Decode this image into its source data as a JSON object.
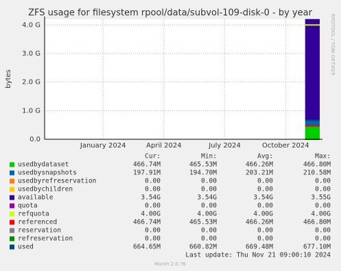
{
  "chart_data": {
    "type": "area",
    "title": "ZFS usage for filesystem rpool/data/subvol-109-disk-0 - by year",
    "y_label": "bytes",
    "side_text": "RRDTOOL / TOBI OETIKER",
    "x": [
      2024.83,
      2024.89
    ],
    "xlim": [
      2023.76,
      2024.89
    ],
    "xticks": [
      {
        "value": 2024,
        "label": "January 2024"
      },
      {
        "value": 2024.25,
        "label": "April 2024"
      },
      {
        "value": 2024.5,
        "label": "July 2024"
      },
      {
        "value": 2024.75,
        "label": "October 2024"
      }
    ],
    "ylim": [
      0,
      4.2
    ],
    "yticks": [
      {
        "value": 0,
        "label": "0.0"
      },
      {
        "value": 1,
        "label": "1.0 G"
      },
      {
        "value": 2,
        "label": "2.0 G"
      },
      {
        "value": 3,
        "label": "3.0 G"
      },
      {
        "value": 4,
        "label": "4.0 G"
      }
    ],
    "grid": true,
    "series": [
      {
        "name": "usedbydataset",
        "color": "#00cc00",
        "style": "area",
        "values": [
          0.46674,
          0.46674
        ]
      },
      {
        "name": "usedbysnapshots",
        "color": "#0066b3",
        "style": "area",
        "values": [
          0.19791,
          0.19791
        ]
      },
      {
        "name": "usedbyrefreservation",
        "color": "#ff8000",
        "style": "area",
        "values": [
          0,
          0
        ]
      },
      {
        "name": "usedbychildren",
        "color": "#ffcc00",
        "style": "area",
        "values": [
          0,
          0
        ]
      },
      {
        "name": "available",
        "color": "#330099",
        "style": "area",
        "values": [
          3.54,
          3.54
        ]
      },
      {
        "name": "quota",
        "color": "#990099",
        "style": "line",
        "values": [
          0,
          0
        ]
      },
      {
        "name": "refquota",
        "color": "#ccff00",
        "style": "line",
        "values": [
          4.0,
          4.0
        ]
      },
      {
        "name": "referenced",
        "color": "#ff0000",
        "style": "line",
        "values": [
          0.46674,
          0.46674
        ]
      },
      {
        "name": "reservation",
        "color": "#808080",
        "style": "line",
        "values": [
          0,
          0
        ]
      },
      {
        "name": "refreservation",
        "color": "#008f00",
        "style": "line",
        "values": [
          0,
          0
        ]
      },
      {
        "name": "used",
        "color": "#00487d",
        "style": "line",
        "values": [
          0.66465,
          0.66465
        ]
      }
    ],
    "stats": {
      "columns": [
        "Cur:",
        "Min:",
        "Avg:",
        "Max:"
      ],
      "rows": [
        [
          "466.74M",
          "465.53M",
          "466.26M",
          "466.80M"
        ],
        [
          "197.91M",
          "194.70M",
          "203.21M",
          "210.58M"
        ],
        [
          "0.00",
          "0.00",
          "0.00",
          "0.00"
        ],
        [
          "0.00",
          "0.00",
          "0.00",
          "0.00"
        ],
        [
          "3.54G",
          "3.54G",
          "3.54G",
          "3.55G"
        ],
        [
          "0.00",
          "0.00",
          "0.00",
          "0.00"
        ],
        [
          "4.00G",
          "4.00G",
          "4.00G",
          "4.00G"
        ],
        [
          "466.74M",
          "465.53M",
          "466.26M",
          "466.80M"
        ],
        [
          "0.00",
          "0.00",
          "0.00",
          "0.00"
        ],
        [
          "0.00",
          "0.00",
          "0.00",
          "0.00"
        ],
        [
          "664.65M",
          "660.82M",
          "669.48M",
          "677.10M"
        ]
      ]
    },
    "last_update": "Last update: Thu Nov 21 09:00:10 2024",
    "footer": "Munin 2.0.76"
  }
}
